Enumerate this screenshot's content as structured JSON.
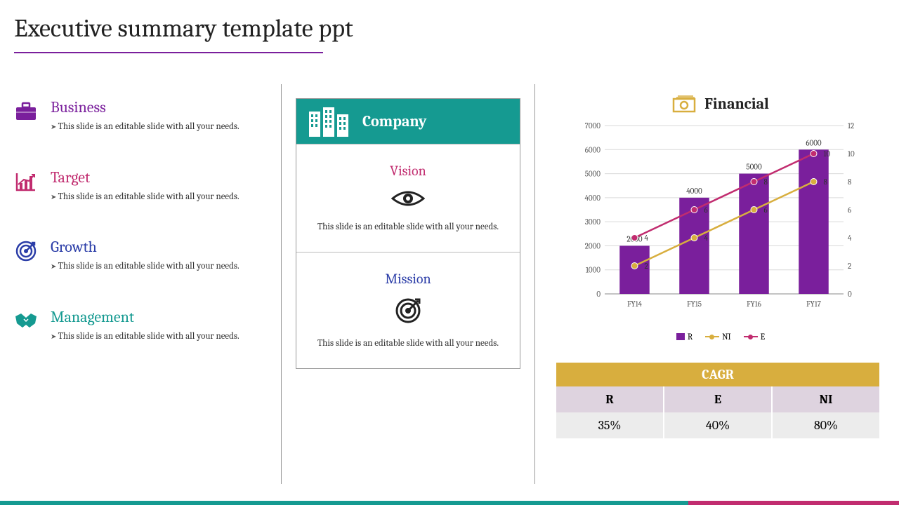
{
  "title": "Executive summary template ppt",
  "title_underline_color": "#7a1f9c",
  "left_items": [
    {
      "heading": "Business",
      "color": "#7a1f9c",
      "desc": "This slide is an editable slide with all your needs."
    },
    {
      "heading": "Target",
      "color": "#c12c6f",
      "desc": "This slide is an editable slide with all your needs."
    },
    {
      "heading": "Growth",
      "color": "#2c3ea8",
      "desc": "This slide is an editable slide with all your needs."
    },
    {
      "heading": "Management",
      "color": "#159a91",
      "desc": "This slide is an editable slide with all your needs."
    }
  ],
  "company": {
    "header_label": "Company",
    "header_bg": "#159a91",
    "vision": {
      "label": "Vision",
      "label_color": "#c12c6f",
      "desc": "This slide is an editable slide with all your needs."
    },
    "mission": {
      "label": "Mission",
      "label_color": "#2c3ea8",
      "desc": "This slide is an editable slide with all your needs."
    }
  },
  "financial": {
    "title": "Financial",
    "icon_color": "#d8ae3e",
    "chart": {
      "type": "bar+line-dual-axis",
      "categories": [
        "FY14",
        "FY15",
        "FY16",
        "FY17"
      ],
      "bars": {
        "series_name": "R",
        "values": [
          2000,
          4000,
          5000,
          6000
        ],
        "color": "#7a1f9c",
        "bar_width": 0.5
      },
      "line1": {
        "series_name": "NI",
        "values": [
          2,
          4,
          6,
          8
        ],
        "color": "#d8ae3e",
        "marker": "circle"
      },
      "line2": {
        "series_name": "E",
        "values": [
          4,
          6,
          8,
          10
        ],
        "color": "#c12c6f",
        "marker": "circle"
      },
      "y_left": {
        "min": 0,
        "max": 7000,
        "step": 1000
      },
      "y_right": {
        "min": 0,
        "max": 12,
        "step": 2
      },
      "grid_color": "#d9d9d9",
      "axis_color": "#888888",
      "label_fontsize": 11,
      "data_label_fontsize": 11
    },
    "legend": {
      "R": {
        "label": "R",
        "color": "#7a1f9c",
        "type": "square"
      },
      "NI": {
        "label": "NI",
        "color": "#d8ae3e",
        "type": "line"
      },
      "E": {
        "label": "E",
        "color": "#c12c6f",
        "type": "line"
      }
    }
  },
  "cagr": {
    "title": "CAGR",
    "header_bg": "#d8ae3e",
    "label_row_bg": "#ded3df",
    "value_row_bg": "#ececec",
    "columns": [
      "R",
      "E",
      "NI"
    ],
    "values": [
      "35%",
      "40%",
      "80%"
    ]
  },
  "bottom_accent": {
    "left_color": "#159a91",
    "right_color": "#c12c6f"
  }
}
